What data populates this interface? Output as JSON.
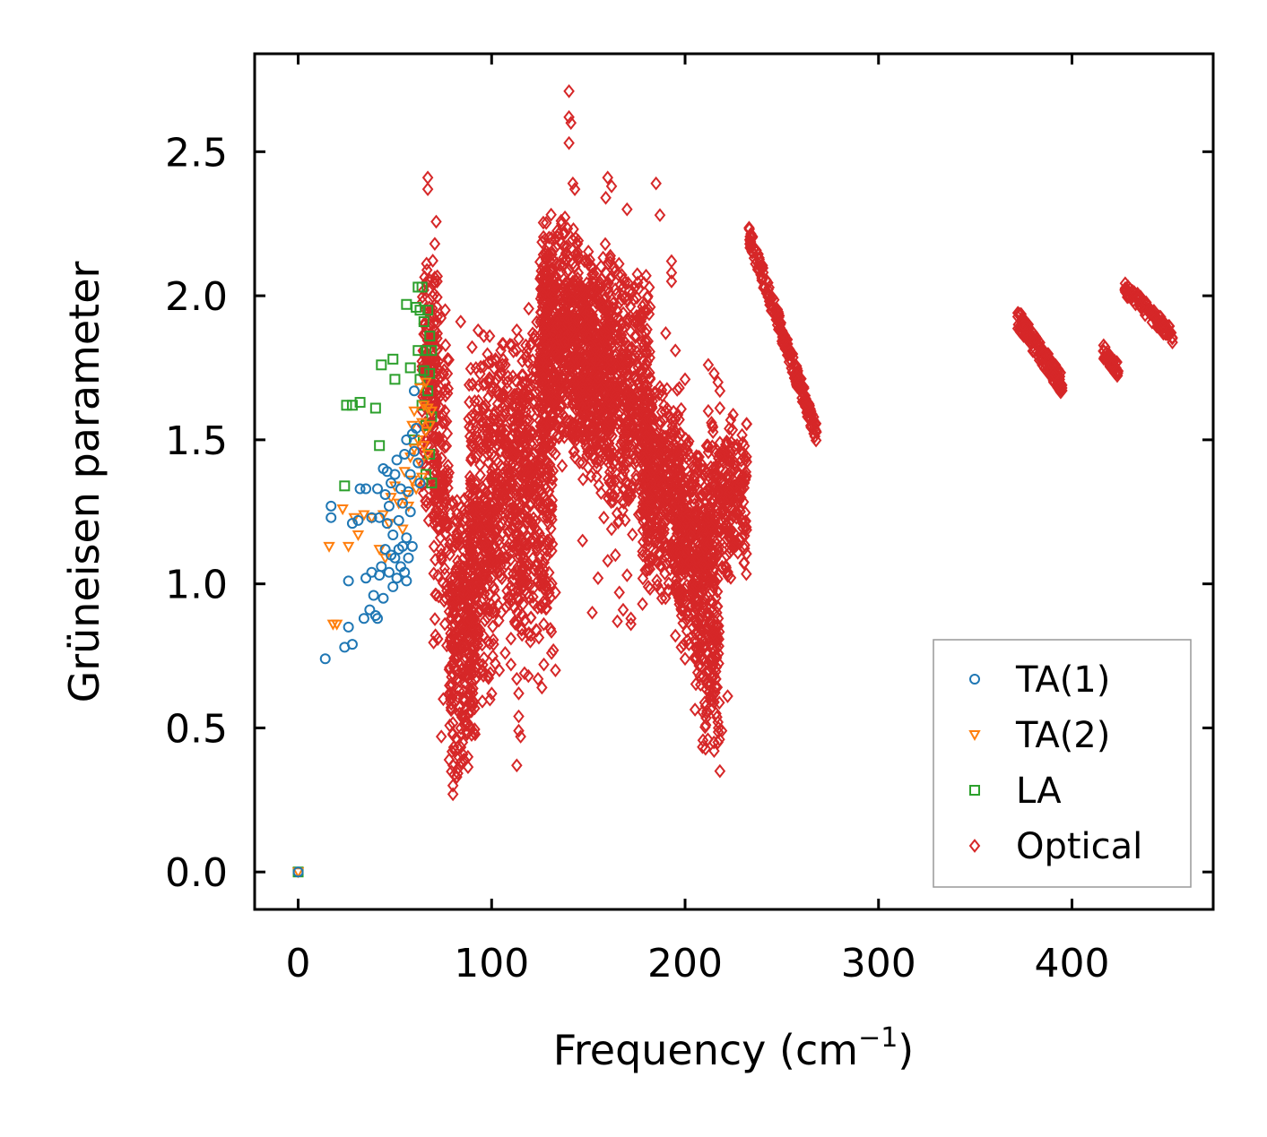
{
  "chart_data": {
    "type": "scatter",
    "title": "",
    "xlabel": "Frequency (cm",
    "xlabel_sup": "−1",
    "xlabel_suffix": ")",
    "ylabel": "Grüneisen parameter",
    "xlim": [
      -22.5,
      473
    ],
    "ylim": [
      -0.13,
      2.84
    ],
    "xticks": [
      0,
      100,
      200,
      300,
      400
    ],
    "xtick_labels": [
      "0",
      "100",
      "200",
      "300",
      "400"
    ],
    "yticks": [
      0.0,
      0.5,
      1.0,
      1.5,
      2.0,
      2.5
    ],
    "ytick_labels": [
      "0.0",
      "0.5",
      "1.0",
      "1.5",
      "2.0",
      "2.5"
    ],
    "grid": false,
    "legend_position": "lower-right",
    "series": [
      {
        "name": "TA(1)",
        "marker": "circle",
        "color": "#1f77b4",
        "points": [
          [
            0,
            0
          ],
          [
            14,
            0.74
          ],
          [
            17,
            1.27
          ],
          [
            17,
            1.23
          ],
          [
            24,
            0.78
          ],
          [
            28,
            0.79
          ],
          [
            26,
            0.85
          ],
          [
            26,
            1.01
          ],
          [
            28,
            1.21
          ],
          [
            31,
            1.22
          ],
          [
            32,
            1.33
          ],
          [
            34,
            0.88
          ],
          [
            35,
            1.02
          ],
          [
            35,
            1.33
          ],
          [
            37,
            0.91
          ],
          [
            38,
            1.04
          ],
          [
            38,
            1.23
          ],
          [
            39,
            0.96
          ],
          [
            40,
            0.89
          ],
          [
            41,
            0.88
          ],
          [
            41,
            1.33
          ],
          [
            42,
            1.03
          ],
          [
            42,
            1.23
          ],
          [
            43,
            1.06
          ],
          [
            44,
            0.95
          ],
          [
            44,
            1.4
          ],
          [
            45,
            1.12
          ],
          [
            45,
            1.31
          ],
          [
            46,
            1.21
          ],
          [
            46,
            1.39
          ],
          [
            47,
            1.27
          ],
          [
            47,
            1.04
          ],
          [
            48,
            1.1
          ],
          [
            48,
            1.35
          ],
          [
            49,
            0.99
          ],
          [
            49,
            1.17
          ],
          [
            50,
            1.09
          ],
          [
            50,
            1.38
          ],
          [
            51,
            1.43
          ],
          [
            51,
            1.02
          ],
          [
            52,
            1.12
          ],
          [
            52,
            1.22
          ],
          [
            53,
            1.06
          ],
          [
            53,
            1.33
          ],
          [
            54,
            1.28
          ],
          [
            54,
            1.13
          ],
          [
            55,
            1.04
          ],
          [
            55,
            1.45
          ],
          [
            56,
            1.01
          ],
          [
            56,
            1.16
          ],
          [
            56,
            1.5
          ],
          [
            57,
            1.32
          ],
          [
            57,
            1.09
          ],
          [
            58,
            1.25
          ],
          [
            58,
            1.38
          ],
          [
            59,
            1.52
          ],
          [
            59,
            1.13
          ],
          [
            60,
            1.46
          ],
          [
            60,
            1.67
          ],
          [
            61,
            1.54
          ],
          [
            62,
            1.42
          ],
          [
            63,
            1.35
          ]
        ]
      },
      {
        "name": "TA(2)",
        "marker": "triangle-down",
        "color": "#ff7f0e",
        "points": [
          [
            0,
            0
          ],
          [
            16,
            1.13
          ],
          [
            18,
            0.86
          ],
          [
            20,
            0.86
          ],
          [
            23,
            1.26
          ],
          [
            26,
            1.13
          ],
          [
            29,
            1.23
          ],
          [
            31,
            1.17
          ],
          [
            34,
            1.24
          ],
          [
            38,
            1.23
          ],
          [
            42,
            1.12
          ],
          [
            44,
            1.24
          ],
          [
            45,
            1.09
          ],
          [
            47,
            1.21
          ],
          [
            48,
            1.3
          ],
          [
            50,
            1.34
          ],
          [
            52,
            1.28
          ],
          [
            54,
            1.19
          ],
          [
            55,
            1.39
          ],
          [
            56,
            1.31
          ],
          [
            57,
            1.27
          ],
          [
            58,
            1.44
          ],
          [
            59,
            1.55
          ],
          [
            59,
            1.36
          ],
          [
            60,
            1.6
          ],
          [
            60,
            1.47
          ],
          [
            61,
            1.33
          ],
          [
            62,
            1.5
          ],
          [
            63,
            1.68
          ],
          [
            63,
            1.42
          ],
          [
            64,
            1.56
          ],
          [
            64,
            1.37
          ],
          [
            65,
            1.62
          ],
          [
            65,
            1.48
          ],
          [
            66,
            1.7
          ],
          [
            66,
            1.53
          ],
          [
            67,
            1.45
          ],
          [
            67,
            1.61
          ],
          [
            68,
            1.55
          ],
          [
            69,
            1.6
          ]
        ]
      },
      {
        "name": "LA",
        "marker": "square",
        "color": "#2ca02c",
        "points": [
          [
            0,
            0
          ],
          [
            24,
            1.34
          ],
          [
            25,
            1.62
          ],
          [
            28,
            1.62
          ],
          [
            32,
            1.63
          ],
          [
            40,
            1.61
          ],
          [
            42,
            1.48
          ],
          [
            43,
            1.76
          ],
          [
            49,
            1.78
          ],
          [
            50,
            1.71
          ],
          [
            56,
            1.97
          ],
          [
            58,
            1.75
          ],
          [
            60,
            1.5
          ],
          [
            61,
            1.96
          ],
          [
            62,
            2.03
          ],
          [
            62,
            1.81
          ],
          [
            63,
            1.95
          ],
          [
            63,
            1.71
          ],
          [
            64,
            2.03
          ],
          [
            64,
            1.62
          ],
          [
            65,
            1.91
          ],
          [
            65,
            1.74
          ],
          [
            66,
            1.81
          ],
          [
            66,
            1.55
          ],
          [
            66,
            1.38
          ],
          [
            67,
            1.95
          ],
          [
            67,
            1.67
          ],
          [
            68,
            1.86
          ],
          [
            68,
            1.73
          ],
          [
            68,
            1.45
          ],
          [
            69,
            1.81
          ],
          [
            69,
            1.58
          ],
          [
            69,
            1.35
          ]
        ]
      },
      {
        "name": "Optical",
        "marker": "diamond",
        "color": "#d62728",
        "clusters": [
          {
            "x": [
              64,
              72
            ],
            "y": [
              1.15,
              2.3
            ],
            "n": 170
          },
          {
            "x": [
              70,
              78
            ],
            "y": [
              0.75,
              1.95
            ],
            "n": 130
          },
          {
            "x": [
              78,
              92
            ],
            "y": [
              0.28,
              1.4
            ],
            "n": 300
          },
          {
            "x": [
              88,
              102
            ],
            "y": [
              0.55,
              1.85
            ],
            "n": 320
          },
          {
            "x": [
              102,
              118
            ],
            "y": [
              0.8,
              1.9
            ],
            "n": 300
          },
          {
            "x": [
              115,
              132
            ],
            "y": [
              0.7,
              2.05
            ],
            "n": 330
          },
          {
            "x": [
              125,
              145
            ],
            "y": [
              1.4,
              2.3
            ],
            "n": 560
          },
          {
            "x": [
              145,
              162
            ],
            "y": [
              1.3,
              2.2
            ],
            "n": 460
          },
          {
            "x": [
              160,
              182
            ],
            "y": [
              1.15,
              2.15
            ],
            "n": 440
          },
          {
            "x": [
              178,
              198
            ],
            "y": [
              0.9,
              1.75
            ],
            "n": 380
          },
          {
            "x": [
              195,
              212
            ],
            "y": [
              0.75,
              1.55
            ],
            "n": 320
          },
          {
            "x": [
              205,
              218
            ],
            "y": [
              0.4,
              1.3
            ],
            "n": 190
          },
          {
            "x": [
              212,
              232
            ],
            "y": [
              1.0,
              1.6
            ],
            "n": 260
          }
        ],
        "bands": [
          {
            "x": [
              233,
              268
            ],
            "y": [
              2.21,
              1.52
            ],
            "n": 200,
            "spread": 0.035
          },
          {
            "x": [
              372,
              395
            ],
            "y": [
              1.92,
              1.69
            ],
            "n": 150,
            "spread": 0.035
          },
          {
            "x": [
              416,
              424
            ],
            "y": [
              1.81,
              1.74
            ],
            "n": 50,
            "spread": 0.025
          },
          {
            "x": [
              427,
              452
            ],
            "y": [
              2.03,
              1.86
            ],
            "n": 90,
            "spread": 0.025
          }
        ],
        "points": [
          [
            140,
            2.71
          ],
          [
            140,
            2.62
          ],
          [
            141,
            2.6
          ],
          [
            140,
            2.53
          ],
          [
            67,
            2.41
          ],
          [
            67,
            2.37
          ],
          [
            142,
            2.39
          ],
          [
            143,
            2.37
          ],
          [
            160,
            2.41
          ],
          [
            162,
            2.38
          ],
          [
            159,
            2.34
          ],
          [
            170,
            2.3
          ],
          [
            185,
            2.39
          ],
          [
            187,
            2.28
          ],
          [
            193,
            2.12
          ],
          [
            193,
            2.08
          ],
          [
            193,
            2.05
          ],
          [
            190,
            1.87
          ],
          [
            195,
            1.81
          ],
          [
            200,
            1.71
          ],
          [
            197,
            1.68
          ],
          [
            212,
            1.76
          ],
          [
            215,
            1.73
          ],
          [
            217,
            1.7
          ],
          [
            218,
            1.67
          ],
          [
            218,
            1.61
          ],
          [
            212,
            1.6
          ],
          [
            214,
            1.55
          ],
          [
            218,
            1.49
          ],
          [
            76,
            1.95
          ],
          [
            84,
            1.91
          ],
          [
            93,
            1.88
          ],
          [
            96,
            1.86
          ],
          [
            99,
            1.86
          ],
          [
            102,
            1.78
          ],
          [
            107,
            1.76
          ],
          [
            111,
            1.72
          ],
          [
            113,
            1.88
          ],
          [
            114,
            1.85
          ],
          [
            120,
            1.83
          ],
          [
            118,
            1.79
          ],
          [
            102,
            1.5
          ],
          [
            111,
            1.45
          ],
          [
            147,
            1.15
          ],
          [
            158,
            1.23
          ],
          [
            162,
            1.19
          ],
          [
            160,
            1.08
          ],
          [
            164,
            1.1
          ],
          [
            170,
            1.03
          ],
          [
            155,
            1.02
          ],
          [
            166,
            0.97
          ],
          [
            172,
            0.86
          ],
          [
            168,
            0.91
          ],
          [
            152,
            0.9
          ],
          [
            165,
            0.87
          ],
          [
            172,
            0.88
          ],
          [
            178,
            0.93
          ],
          [
            181,
            0.99
          ],
          [
            188,
            0.95
          ],
          [
            195,
            0.82
          ],
          [
            198,
            0.78
          ],
          [
            200,
            0.74
          ],
          [
            202,
            0.79
          ],
          [
            208,
            0.77
          ],
          [
            213,
            0.74
          ],
          [
            215,
            0.68
          ],
          [
            222,
            0.61
          ],
          [
            208,
            0.65
          ],
          [
            215,
            0.59
          ],
          [
            216,
            0.55
          ],
          [
            217,
            0.52
          ],
          [
            219,
            0.49
          ],
          [
            215,
            0.42
          ],
          [
            217,
            0.45
          ],
          [
            218,
            0.35
          ],
          [
            155,
            1.43
          ],
          [
            131,
            0.76
          ],
          [
            133,
            0.7
          ],
          [
            124,
            0.67
          ],
          [
            119,
            0.68
          ],
          [
            117,
            0.69
          ],
          [
            113,
            0.67
          ],
          [
            114,
            0.62
          ],
          [
            114,
            0.54
          ],
          [
            114,
            0.49
          ],
          [
            115,
            0.47
          ],
          [
            113,
            0.37
          ],
          [
            101,
            0.79
          ],
          [
            104,
            0.7
          ],
          [
            94,
            0.84
          ],
          [
            89,
            0.73
          ],
          [
            87,
            0.68
          ],
          [
            75,
            0.6
          ],
          [
            79,
            0.57
          ],
          [
            80,
            0.48
          ],
          [
            81,
            0.42
          ],
          [
            80,
            0.37
          ],
          [
            80,
            0.3
          ],
          [
            80,
            0.27
          ],
          [
            82,
            0.33
          ],
          [
            84,
            0.38
          ],
          [
            85,
            0.45
          ],
          [
            86,
            0.51
          ],
          [
            88,
            0.55
          ],
          [
            88,
            0.62
          ],
          [
            74,
            0.47
          ],
          [
            127,
            0.72
          ],
          [
            126,
            0.64
          ],
          [
            120,
            0.8
          ],
          [
            107,
            0.76
          ],
          [
            110,
            0.81
          ],
          [
            105,
            0.9
          ],
          [
            110,
            0.72
          ],
          [
            122,
            0.93
          ],
          [
            123,
            0.84
          ],
          [
            126,
            1.02
          ],
          [
            133,
            0.97
          ]
        ]
      }
    ]
  }
}
